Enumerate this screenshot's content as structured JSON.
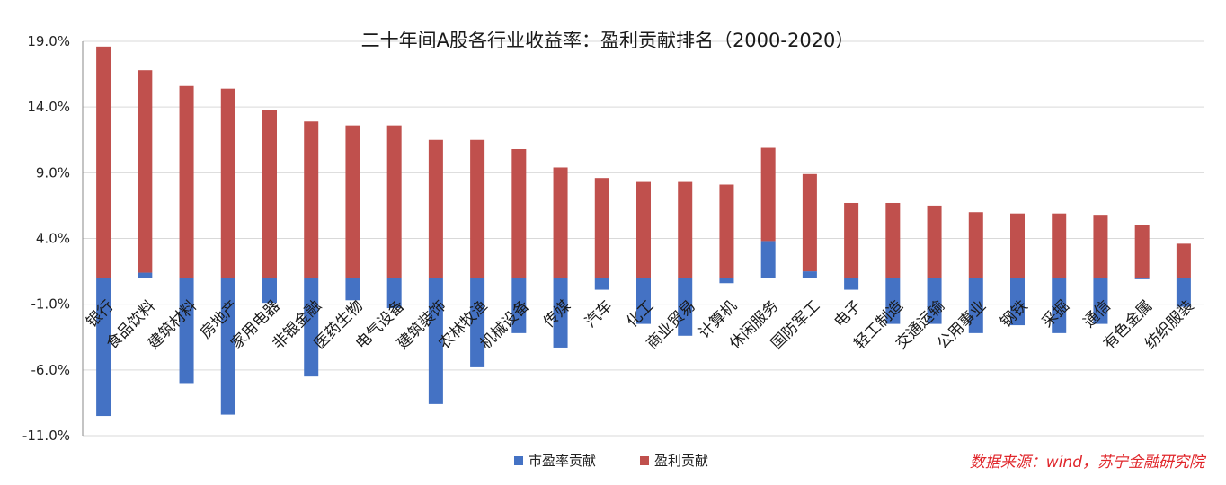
{
  "chart_data": {
    "type": "bar",
    "stacked": true,
    "title": "二十年间A股各行业收益率：盈利贡献排名（2000-2020）",
    "source": "数据来源：wind，苏宁金融研究院",
    "yticks": [
      "19.0%",
      "14.0%",
      "9.0%",
      "4.0%",
      "-1.0%",
      "-6.0%",
      "-11.0%"
    ],
    "ylim": [
      -11,
      19
    ],
    "baseline": 1,
    "grid": true,
    "legend_position": "bottom",
    "categories": [
      "银行",
      "食品饮料",
      "建筑材料",
      "房地产",
      "家用电器",
      "非银金融",
      "医药生物",
      "电气设备",
      "建筑装饰",
      "农林牧渔",
      "机械设备",
      "传媒",
      "汽车",
      "化工",
      "商业贸易",
      "计算机",
      "休闲服务",
      "国防军工",
      "电子",
      "轻工制造",
      "交通运输",
      "公用事业",
      "钢铁",
      "采掘",
      "通信",
      "有色金属",
      "纺织服装"
    ],
    "series": [
      {
        "name": "市盈率贡献",
        "color": "#4472c4",
        "values": [
          -10.5,
          0.4,
          -8.0,
          -10.4,
          -1.9,
          -7.5,
          -1.7,
          -2.3,
          -9.6,
          -6.8,
          -4.2,
          -5.3,
          -0.9,
          -3.5,
          -4.4,
          -0.4,
          2.8,
          0.5,
          -0.9,
          -3.5,
          -3.5,
          -4.2,
          -3.6,
          -4.2,
          -3.5,
          -0.1,
          -2.2
        ]
      },
      {
        "name": "盈利贡献",
        "color": "#c0504d",
        "values": [
          17.6,
          15.4,
          14.6,
          14.4,
          12.8,
          11.9,
          11.6,
          11.6,
          10.5,
          10.5,
          9.8,
          8.4,
          7.6,
          7.3,
          7.3,
          7.1,
          7.1,
          7.4,
          5.7,
          5.7,
          5.5,
          5.0,
          4.9,
          4.9,
          4.8,
          4.0,
          2.6
        ]
      }
    ]
  }
}
